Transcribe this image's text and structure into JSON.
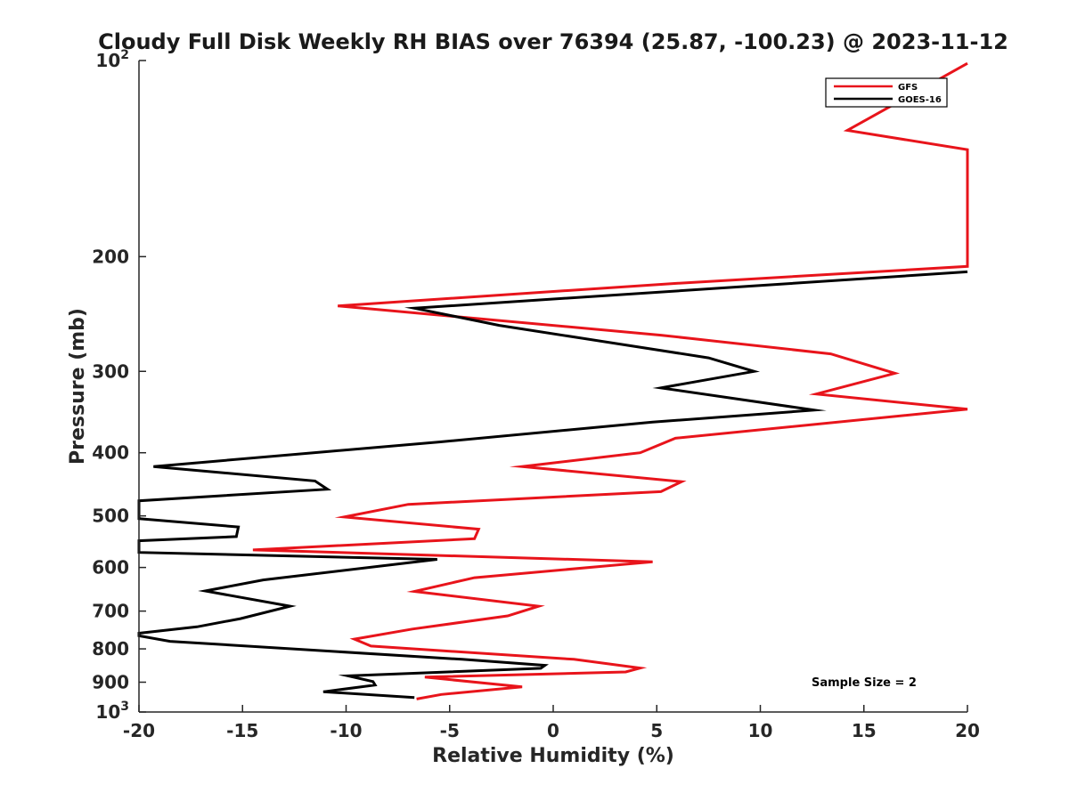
{
  "chart_data": {
    "type": "line",
    "title": "Cloudy Full Disk Weekly RH BIAS over 76394 (25.87, -100.23) @ 2023-11-12",
    "xlabel": "Relative Humidity (%)",
    "ylabel": "Pressure (mb)",
    "xlim": [
      -20,
      20
    ],
    "ylim": [
      100,
      1000
    ],
    "yscale": "log",
    "y_reversed": true,
    "x_ticks": [
      "-20",
      "-15",
      "-10",
      "-5",
      "0",
      "5",
      "10",
      "15",
      "20"
    ],
    "y_ticks": [
      {
        "value": 100,
        "base": "10",
        "exp": "2"
      },
      {
        "value": 200,
        "label": "200"
      },
      {
        "value": 300,
        "label": "300"
      },
      {
        "value": 400,
        "label": "400"
      },
      {
        "value": 500,
        "label": "500"
      },
      {
        "value": 600,
        "label": "600"
      },
      {
        "value": 700,
        "label": "700"
      },
      {
        "value": 800,
        "label": "800"
      },
      {
        "value": 900,
        "label": "900"
      },
      {
        "value": 1000,
        "base": "10",
        "exp": "3"
      }
    ],
    "grid": false,
    "legend_position": "top-right",
    "annotation": "Sample Size = 2",
    "series": [
      {
        "name": "GFS",
        "color": "#e8141b",
        "points": [
          [
            20,
            101
          ],
          [
            14.2,
            128
          ],
          [
            20,
            137
          ],
          [
            20,
            207
          ],
          [
            5.7,
            220
          ],
          [
            -10.4,
            238
          ],
          [
            5.2,
            264
          ],
          [
            13.4,
            282
          ],
          [
            16.5,
            302
          ],
          [
            12.7,
            325
          ],
          [
            20,
            343
          ],
          [
            5.9,
            380
          ],
          [
            4.2,
            400
          ],
          [
            -1.5,
            420
          ],
          [
            6.2,
            443
          ],
          [
            5.2,
            459
          ],
          [
            -7.0,
            480
          ],
          [
            -10.1,
            502
          ],
          [
            -3.6,
            524
          ],
          [
            -3.8,
            542
          ],
          [
            -14.5,
            564
          ],
          [
            4.8,
            588
          ],
          [
            -3.8,
            622
          ],
          [
            -6.7,
            653
          ],
          [
            -0.7,
            688
          ],
          [
            -2.2,
            712
          ],
          [
            -6.8,
            746
          ],
          [
            -9.6,
            773
          ],
          [
            -8.8,
            792
          ],
          [
            1.0,
            830
          ],
          [
            4.2,
            856
          ],
          [
            3.5,
            868
          ],
          [
            -6.2,
            884
          ],
          [
            -1.5,
            915
          ],
          [
            -5.4,
            940
          ],
          [
            -6.6,
            955
          ]
        ]
      },
      {
        "name": "GOES-16",
        "color": "#000000",
        "points": [
          [
            20,
            211
          ],
          [
            9.5,
            222
          ],
          [
            -6.7,
            240
          ],
          [
            -2.6,
            255
          ],
          [
            7.5,
            286
          ],
          [
            9.7,
            300
          ],
          [
            5.2,
            318
          ],
          [
            12.6,
            344
          ],
          [
            4.8,
            359
          ],
          [
            -5.5,
            385
          ],
          [
            -19.3,
            420
          ],
          [
            -11.5,
            442
          ],
          [
            -10.9,
            455
          ],
          [
            -20,
            474
          ],
          [
            -20,
            505
          ],
          [
            -15.2,
            520
          ],
          [
            -15.3,
            538
          ],
          [
            -20,
            546
          ],
          [
            -20,
            569
          ],
          [
            -5.6,
            583
          ],
          [
            -14.0,
            627
          ],
          [
            -16.8,
            652
          ],
          [
            -12.7,
            688
          ],
          [
            -15.1,
            719
          ],
          [
            -17.2,
            740
          ],
          [
            -20,
            757
          ],
          [
            -20,
            764
          ],
          [
            -18.5,
            779
          ],
          [
            -4.4,
            830
          ],
          [
            -0.4,
            848
          ],
          [
            -0.6,
            857
          ],
          [
            -9.9,
            880
          ],
          [
            -8.7,
            898
          ],
          [
            -8.6,
            909
          ],
          [
            -11.1,
            931
          ],
          [
            -6.7,
            950
          ]
        ]
      }
    ]
  }
}
